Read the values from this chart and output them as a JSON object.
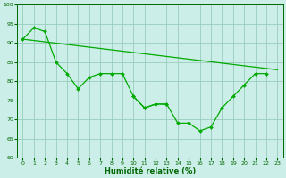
{
  "xlabel": "Humidité relative (%)",
  "bg_color": "#cceee8",
  "grid_color": "#99ccbb",
  "line_color": "#00aa00",
  "ylim": [
    60,
    100
  ],
  "xlim": [
    -0.5,
    23.5
  ],
  "yticks": [
    60,
    65,
    70,
    75,
    80,
    85,
    90,
    95,
    100
  ],
  "xticks": [
    0,
    1,
    2,
    3,
    4,
    5,
    6,
    7,
    8,
    9,
    10,
    11,
    12,
    13,
    14,
    15,
    16,
    17,
    18,
    19,
    20,
    21,
    22,
    23
  ],
  "series_straight": [
    [
      0,
      91
    ],
    [
      23,
      83
    ]
  ],
  "series_upper": [
    91,
    94,
    93,
    85,
    82,
    78,
    81,
    82,
    82,
    82,
    76,
    73,
    74,
    74,
    null,
    null,
    null,
    null,
    null,
    null,
    null,
    null,
    null,
    null
  ],
  "series_lower": [
    null,
    null,
    null,
    null,
    null,
    null,
    null,
    null,
    null,
    null,
    76,
    73,
    74,
    74,
    69,
    69,
    67,
    68,
    73,
    76,
    79,
    82,
    82,
    null
  ]
}
